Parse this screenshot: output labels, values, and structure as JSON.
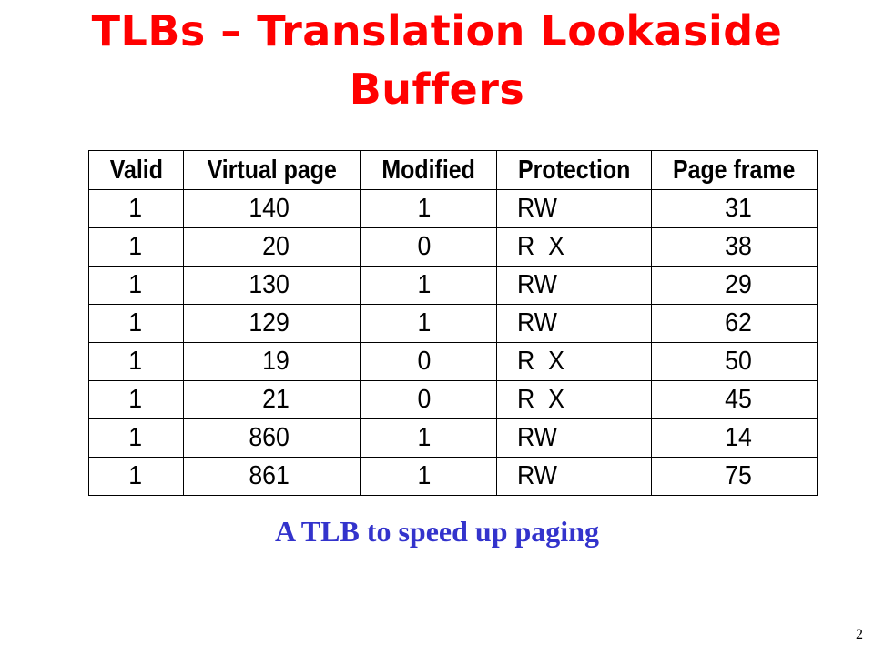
{
  "slide": {
    "title_line1": "TLBs – Translation Lookaside",
    "title_line2": "Buffers",
    "caption": "A TLB to speed up paging",
    "page_number": "2"
  },
  "table": {
    "headers": [
      "Valid",
      "Virtual page",
      "Modified",
      "Protection",
      "Page frame"
    ],
    "rows": [
      [
        "1",
        "140",
        "1",
        "RW",
        "31"
      ],
      [
        "1",
        "20",
        "0",
        "R  X",
        "38"
      ],
      [
        "1",
        "130",
        "1",
        "RW",
        "29"
      ],
      [
        "1",
        "129",
        "1",
        "RW",
        "62"
      ],
      [
        "1",
        "19",
        "0",
        "R  X",
        "50"
      ],
      [
        "1",
        "21",
        "0",
        "R  X",
        "45"
      ],
      [
        "1",
        "860",
        "1",
        "RW",
        "14"
      ],
      [
        "1",
        "861",
        "1",
        "RW",
        "75"
      ]
    ]
  }
}
